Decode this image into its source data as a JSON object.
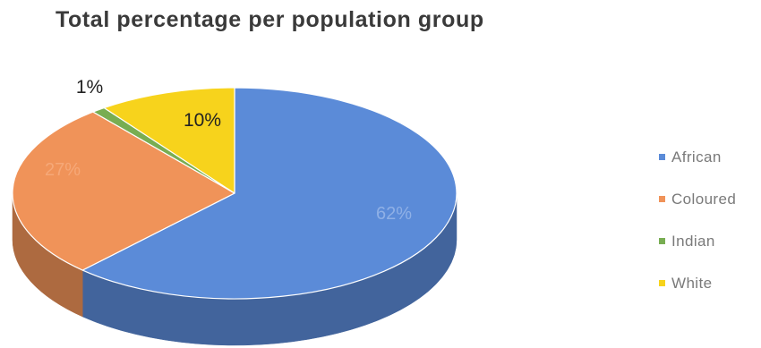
{
  "chart_data": {
    "type": "pie",
    "title": "Total percentage per population group",
    "three_d": true,
    "legend_position": "right",
    "slices": [
      {
        "name": "African",
        "value": 62,
        "label": "62%",
        "color": "#5b8bd8"
      },
      {
        "name": "Coloured",
        "value": 27,
        "label": "27%",
        "color": "#f09359"
      },
      {
        "name": "Indian",
        "value": 1,
        "label": "1%",
        "color": "#78ad52"
      },
      {
        "name": "White",
        "value": 10,
        "label": "10%",
        "color": "#f7d31c"
      }
    ]
  }
}
